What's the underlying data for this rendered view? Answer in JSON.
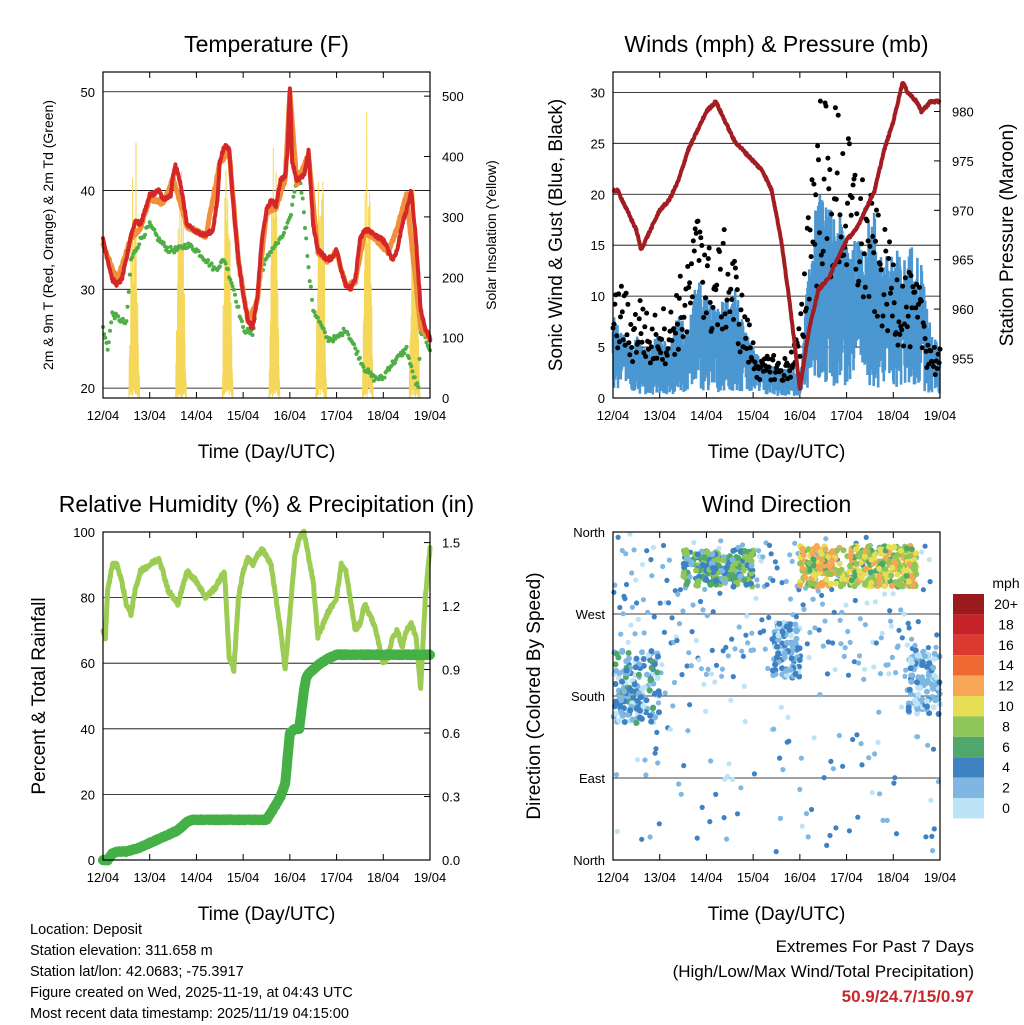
{
  "xticks": [
    "12/04",
    "13/04",
    "14/04",
    "15/04",
    "16/04",
    "17/04",
    "18/04",
    "19/04"
  ],
  "xlabel": "Time (Day/UTC)",
  "info": {
    "location": "Location: Deposit",
    "elevation": "Station elevation: 311.658 m",
    "latlon": "Station lat/lon: 42.0683; -75.3917",
    "created": "Figure created on Wed, 2025-11-19, at 04:43 UTC",
    "recent": "Most recent data timestamp: 2025/11/19 04:15:00"
  },
  "extremes": {
    "title": "Extremes For Past 7 Days",
    "subtitle": "(High/Low/Max Wind/Total Precipitation)",
    "values": "50.9/24.7/15/0.97"
  },
  "colors": {
    "temp2m": "#d62728",
    "temp9m": "#f0903a",
    "dewpoint": "#4fae45",
    "solar": "#f5d75a",
    "wind": "#4b97d1",
    "gust": "#000000",
    "pressure": "#a11d22",
    "rh": "#9dcc55",
    "precip": "#45b045"
  },
  "chart_data": [
    {
      "type": "line",
      "title": "Temperature (F)",
      "xlabel": "Time (Day/UTC)",
      "ylabel": "2m & 9m T (Red, Orange) & 2m Td (Green)",
      "ylabel_right": "Solar Insolation (Yellow)",
      "x_range": [
        0,
        7
      ],
      "ylim": [
        19,
        52
      ],
      "yticks": [
        20,
        30,
        40,
        50
      ],
      "ylim_right": [
        0,
        540
      ],
      "yticks_right": [
        0,
        100,
        200,
        300,
        400,
        500
      ],
      "grid": true,
      "series": [
        {
          "name": "2m T",
          "axis": "left",
          "color": "#d62728",
          "x": [
            0,
            0.1,
            0.2,
            0.3,
            0.4,
            0.5,
            0.6,
            0.7,
            0.8,
            1.0,
            1.2,
            1.3,
            1.45,
            1.5,
            1.55,
            1.65,
            1.8,
            2.0,
            2.2,
            2.35,
            2.45,
            2.5,
            2.6,
            2.7,
            2.8,
            2.9,
            3.0,
            3.1,
            3.2,
            3.3,
            3.4,
            3.5,
            3.6,
            3.7,
            3.8,
            3.9,
            3.95,
            4.0,
            4.05,
            4.15,
            4.3,
            4.4,
            4.5,
            4.6,
            4.7,
            4.8,
            4.9,
            5.0,
            5.1,
            5.2,
            5.3,
            5.4,
            5.5,
            5.6,
            5.7,
            5.8,
            6.0,
            6.1,
            6.2,
            6.3,
            6.4,
            6.5,
            6.6,
            6.7,
            6.8,
            6.9,
            7.0
          ],
          "y": [
            35,
            33,
            31,
            30.5,
            31,
            33,
            35.5,
            37,
            36.5,
            39.5,
            40,
            39,
            39.5,
            41.5,
            42.5,
            41,
            36.5,
            35.8,
            35.5,
            36,
            39,
            43,
            44.5,
            44.2,
            38,
            33,
            29.5,
            27,
            26,
            29,
            35,
            38,
            39,
            38.5,
            41,
            41.5,
            44,
            50.5,
            43,
            41,
            41.5,
            44,
            36.5,
            34,
            33.5,
            33,
            33.2,
            34,
            32,
            30.5,
            30,
            31,
            35,
            36,
            36,
            35.5,
            35,
            34,
            33,
            34,
            36.5,
            38,
            40,
            35,
            28,
            26,
            25
          ]
        },
        {
          "name": "9m T",
          "axis": "left",
          "color": "#f0903a",
          "x": [
            0,
            0.3,
            0.6,
            0.8,
            1.0,
            1.3,
            1.5,
            1.8,
            2.2,
            2.5,
            2.7,
            2.9,
            3.1,
            3.3,
            3.5,
            3.7,
            3.9,
            4.0,
            4.15,
            4.4,
            4.6,
            4.8,
            5.0,
            5.2,
            5.4,
            5.6,
            5.8,
            6.1,
            6.3,
            6.5,
            6.6,
            6.8,
            7.0
          ],
          "y": [
            34.6,
            30.8,
            35.2,
            36.2,
            39.2,
            38.7,
            41.3,
            36.4,
            35.4,
            42.8,
            44.0,
            32.8,
            26.8,
            28.8,
            37.8,
            38.2,
            41.2,
            50.0,
            40.8,
            43.6,
            33.8,
            32.9,
            33.8,
            30.3,
            30.8,
            35.8,
            35.3,
            33.8,
            36.2,
            39.6,
            34.9,
            26.2,
            25.1
          ]
        },
        {
          "name": "2m Td",
          "axis": "left",
          "color": "#4fae45",
          "x": [
            0,
            0.05,
            0.1,
            0.2,
            0.35,
            0.5,
            0.6,
            0.7,
            0.8,
            1.0,
            1.2,
            1.4,
            1.6,
            1.8,
            2.0,
            2.2,
            2.4,
            2.6,
            2.8,
            3.0,
            3.2,
            3.4,
            3.6,
            3.8,
            4.0,
            4.1,
            4.2,
            4.3,
            4.4,
            4.5,
            4.6,
            4.8,
            5.0,
            5.2,
            5.4,
            5.6,
            5.8,
            6.0,
            6.1,
            6.2,
            6.3,
            6.4,
            6.5,
            6.6,
            6.7,
            6.75,
            6.8,
            6.85,
            6.9,
            7.0
          ],
          "y": [
            26,
            25,
            24,
            27.5,
            27,
            26.5,
            33,
            34,
            35,
            36.5,
            35,
            34,
            34,
            34.5,
            34,
            33,
            32,
            33,
            30,
            26,
            25.5,
            32,
            34,
            35,
            37,
            40,
            42,
            38,
            32,
            28,
            27,
            25,
            25,
            26,
            24,
            22,
            21,
            21,
            22,
            22.5,
            23,
            23.5,
            24,
            22,
            20.5,
            20,
            25.5,
            26,
            25,
            24
          ]
        },
        {
          "name": "Solar Insolation",
          "axis": "right",
          "color": "#f5d75a",
          "style": "spikes",
          "days": [
            0,
            1,
            2,
            3,
            4,
            5,
            6
          ],
          "peaks": [
            [
              180,
              330,
              510
            ],
            [
              260,
              460,
              400
            ],
            [
              230,
              510,
              420
            ],
            [
              330,
              515,
              440
            ],
            [
              300,
              515,
              480
            ],
            [
              300,
              500,
              440
            ],
            [
              380,
              400,
              370
            ]
          ]
        }
      ]
    },
    {
      "type": "scatter",
      "title": "Winds (mph) & Pressure (mb)",
      "xlabel": "Time (Day/UTC)",
      "ylabel": "Sonic Wind & Gust (Blue, Black)",
      "ylabel_right": "Station Pressure (Maroon)",
      "x_range": [
        0,
        7
      ],
      "ylim": [
        0,
        32
      ],
      "yticks": [
        0,
        5,
        10,
        15,
        20,
        25,
        30
      ],
      "ylim_right": [
        951,
        984
      ],
      "yticks_right": [
        955,
        960,
        965,
        970,
        975,
        980
      ],
      "grid": true,
      "series": [
        {
          "name": "Sonic Wind",
          "axis": "left",
          "color": "#4b97d1",
          "x": [
            0,
            0.2,
            0.4,
            0.6,
            0.8,
            1.0,
            1.2,
            1.4,
            1.6,
            1.8,
            2.0,
            2.2,
            2.4,
            2.6,
            2.8,
            3.0,
            3.2,
            3.4,
            3.6,
            3.8,
            4.0,
            4.1,
            4.2,
            4.4,
            4.6,
            4.8,
            5.0,
            5.2,
            5.4,
            5.6,
            5.8,
            6.0,
            6.2,
            6.4,
            6.6,
            6.8,
            7.0
          ],
          "y": [
            5,
            4,
            3,
            4,
            3,
            4,
            3,
            5,
            4,
            7,
            6,
            5,
            6,
            7,
            4,
            3,
            2,
            2,
            1.5,
            2,
            1,
            4,
            9,
            12,
            11,
            11,
            10,
            9,
            10,
            11,
            8,
            9,
            8,
            9,
            8,
            4,
            3
          ]
        },
        {
          "name": "Gust",
          "axis": "left",
          "color": "#000000",
          "x": [
            0,
            0.2,
            0.4,
            0.6,
            0.8,
            1.0,
            1.2,
            1.4,
            1.6,
            1.8,
            1.85,
            2.0,
            2.2,
            2.4,
            2.6,
            2.8,
            3.0,
            3.2,
            3.4,
            3.6,
            3.8,
            4.0,
            4.1,
            4.2,
            4.4,
            4.5,
            4.6,
            4.8,
            5.0,
            5.2,
            5.4,
            5.6,
            5.8,
            6.0,
            6.2,
            6.4,
            6.6,
            6.8,
            7.0
          ],
          "y": [
            8,
            10,
            7,
            9,
            6,
            8,
            7,
            10,
            11,
            16,
            22,
            13,
            12,
            14,
            12,
            8,
            5,
            3,
            4,
            3,
            4,
            6,
            12,
            20,
            24,
            28,
            22,
            25,
            22,
            20,
            18,
            16,
            14,
            12,
            11,
            10,
            9,
            5,
            4
          ]
        },
        {
          "name": "Station Pressure",
          "axis": "right",
          "color": "#a11d22",
          "x": [
            0,
            0.1,
            0.2,
            0.4,
            0.5,
            0.6,
            0.8,
            1.0,
            1.2,
            1.4,
            1.6,
            1.8,
            2.0,
            2.2,
            2.4,
            2.6,
            2.8,
            3.0,
            3.2,
            3.4,
            3.6,
            3.8,
            3.9,
            4.0,
            4.1,
            4.2,
            4.4,
            4.6,
            4.8,
            5.0,
            5.2,
            5.4,
            5.6,
            5.8,
            6.0,
            6.2,
            6.3,
            6.5,
            6.6,
            6.8,
            7.0
          ],
          "y": [
            972,
            972,
            971,
            969,
            968,
            966,
            968,
            970,
            971,
            973,
            976,
            978,
            980,
            981,
            979,
            977,
            976,
            975,
            974,
            972,
            967,
            960,
            956,
            952,
            955,
            958,
            962,
            963,
            965,
            967,
            968,
            970,
            972,
            976,
            979,
            983,
            982,
            981,
            980,
            981,
            981
          ]
        }
      ]
    },
    {
      "type": "line",
      "title": "Relative Humidity (%) & Precipitation (in)",
      "xlabel": "Time (Day/UTC)",
      "ylabel": "Percent & Total Rainfall",
      "x_range": [
        0,
        7
      ],
      "ylim": [
        0,
        100
      ],
      "yticks": [
        0,
        20,
        40,
        60,
        80,
        100
      ],
      "ylim_right": [
        0,
        1.55
      ],
      "yticks_right": [
        "0.0",
        "0.3",
        "0.6",
        "0.9",
        "1.2",
        "1.5"
      ],
      "grid": true,
      "series": [
        {
          "name": "Relative Humidity",
          "axis": "left",
          "color": "#9dcc55",
          "x": [
            0,
            0.05,
            0.1,
            0.2,
            0.3,
            0.4,
            0.5,
            0.6,
            0.7,
            0.8,
            1.0,
            1.2,
            1.4,
            1.6,
            1.8,
            2.0,
            2.2,
            2.4,
            2.6,
            2.7,
            2.8,
            2.9,
            3.0,
            3.1,
            3.2,
            3.4,
            3.6,
            3.8,
            3.9,
            4.0,
            4.1,
            4.2,
            4.3,
            4.5,
            4.6,
            4.8,
            5.0,
            5.1,
            5.2,
            5.4,
            5.5,
            5.6,
            5.8,
            6.0,
            6.1,
            6.2,
            6.3,
            6.4,
            6.5,
            6.6,
            6.7,
            6.8,
            6.9,
            7.0
          ],
          "y": [
            70,
            68,
            82,
            90,
            90,
            85,
            78,
            75,
            83,
            88,
            90,
            92,
            82,
            78,
            88,
            85,
            80,
            83,
            88,
            62,
            58,
            80,
            88,
            92,
            90,
            95,
            90,
            70,
            58,
            75,
            92,
            98,
            100,
            85,
            68,
            75,
            80,
            90,
            88,
            70,
            72,
            78,
            72,
            60,
            62,
            68,
            70,
            65,
            70,
            72,
            68,
            52,
            80,
            95
          ]
        },
        {
          "name": "Total Precipitation",
          "axis": "right",
          "color": "#45b045",
          "x": [
            0,
            0.1,
            0.2,
            0.3,
            0.5,
            0.8,
            1.0,
            1.2,
            1.4,
            1.6,
            1.8,
            1.9,
            2.0,
            2.5,
            3.0,
            3.5,
            3.7,
            3.8,
            3.9,
            4.0,
            4.1,
            4.2,
            4.3,
            4.35,
            4.4,
            4.6,
            4.8,
            5.0,
            5.2,
            5.4,
            6.0,
            6.5,
            7.0
          ],
          "y": [
            0,
            0.0,
            0.03,
            0.04,
            0.04,
            0.06,
            0.08,
            0.1,
            0.12,
            0.14,
            0.18,
            0.19,
            0.19,
            0.19,
            0.19,
            0.19,
            0.26,
            0.3,
            0.36,
            0.6,
            0.62,
            0.62,
            0.8,
            0.86,
            0.88,
            0.92,
            0.95,
            0.97,
            0.97,
            0.97,
            0.97,
            0.97,
            0.97
          ]
        }
      ]
    },
    {
      "type": "scatter",
      "title": "Wind Direction",
      "xlabel": "Time (Day/UTC)",
      "ylabel": "Direction (Colored By Speed)",
      "x_range": [
        0,
        7
      ],
      "ylim": [
        0,
        360
      ],
      "yticks": [
        "North",
        "East",
        "South",
        "West",
        "North"
      ],
      "ytick_values": [
        0,
        90,
        180,
        270,
        360
      ],
      "grid": true,
      "colorbar": {
        "title": "mph",
        "labels": [
          "20+",
          "18",
          "16",
          "14",
          "12",
          "10",
          "8",
          "6",
          "4",
          "2",
          "0"
        ],
        "colors": [
          "#9a1b1e",
          "#c52327",
          "#dc3a2e",
          "#ef6a32",
          "#f6a654",
          "#e6df55",
          "#8fc658",
          "#4fa86a",
          "#3e82c4",
          "#7fb7e2",
          "#bde3f7"
        ]
      },
      "clusters": [
        {
          "x": [
            0.0,
            1.0
          ],
          "dir": [
            150,
            230
          ],
          "speed": [
            0,
            6
          ]
        },
        {
          "x": [
            1.5,
            3.0
          ],
          "dir": [
            300,
            340
          ],
          "speed": [
            2,
            9
          ]
        },
        {
          "x": [
            3.4,
            4.0
          ],
          "dir": [
            200,
            260
          ],
          "speed": [
            0,
            5
          ]
        },
        {
          "x": [
            4.0,
            6.5
          ],
          "dir": [
            300,
            345
          ],
          "speed": [
            6,
            13
          ]
        },
        {
          "x": [
            6.3,
            7.0
          ],
          "dir": [
            160,
            230
          ],
          "speed": [
            0,
            4
          ]
        }
      ]
    }
  ]
}
